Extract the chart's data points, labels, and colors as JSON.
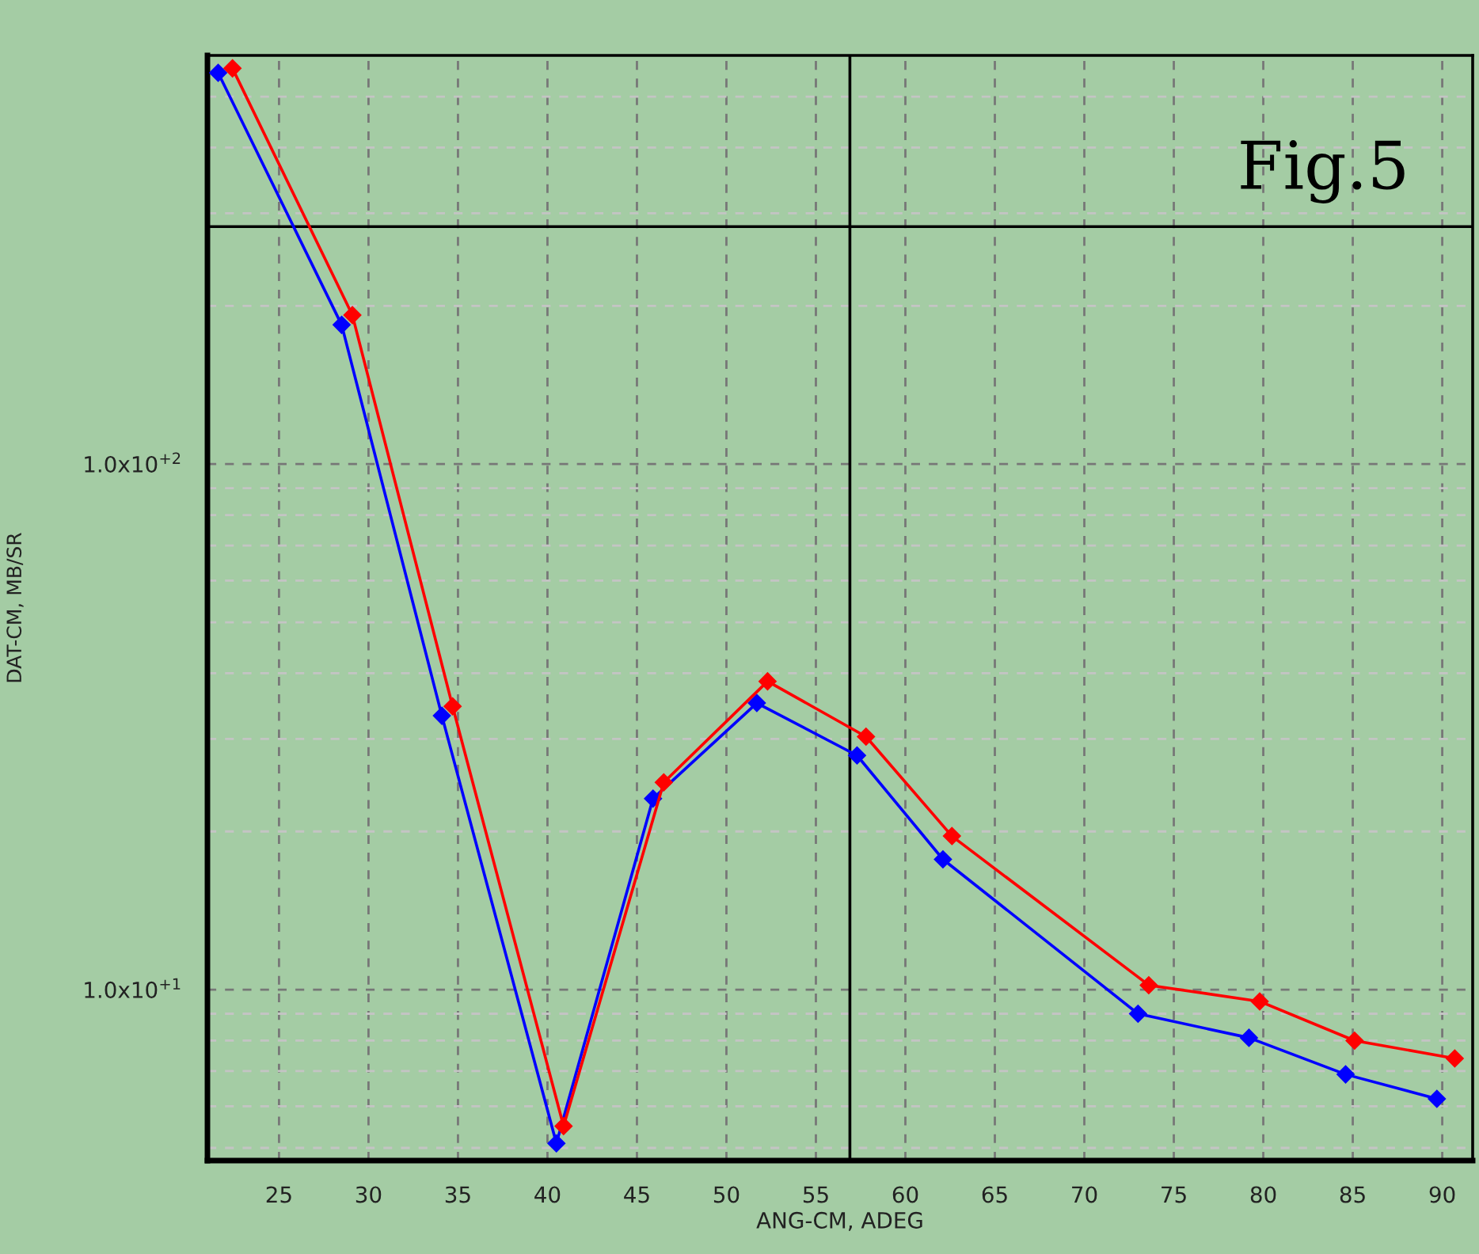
{
  "chart_data": {
    "type": "line",
    "xlabel": "ANG-CM, ADEG",
    "ylabel": "DAT-CM, MB/SR",
    "annotations": [
      "Fig.5"
    ],
    "series": [
      {
        "color": "#0000ff",
        "x": [
          21.6,
          28.5,
          34.1,
          40.5,
          45.9,
          51.7,
          57.3,
          62.1,
          73.0,
          79.2,
          84.6,
          89.7
        ],
        "values": [
          555,
          184,
          33.2,
          5.1,
          23.1,
          35.1,
          27.9,
          17.7,
          9.0,
          8.1,
          6.9,
          6.2
        ]
      },
      {
        "color": "#ff0000",
        "x": [
          22.4,
          29.1,
          34.7,
          40.9,
          46.5,
          52.3,
          57.8,
          62.6,
          73.6,
          79.8,
          85.1,
          90.7
        ],
        "values": [
          566,
          192,
          34.6,
          5.5,
          24.8,
          38.6,
          30.3,
          19.6,
          10.2,
          9.5,
          8.0,
          7.4
        ]
      }
    ],
    "log": "y",
    "xlim": [
      21,
      91.7
    ],
    "ylim": [
      4.73,
      599
    ],
    "xticks": [
      25,
      30,
      35,
      40,
      45,
      50,
      55,
      60,
      65,
      70,
      75,
      80,
      85,
      90
    ],
    "yticks": [
      {
        "value": 10,
        "label": "1.0x10$^{+1}$"
      },
      {
        "value": 100,
        "label": "1.0x10$^{+2}$"
      }
    ],
    "ref_lines": [
      {
        "axis": "x",
        "value": 56.9,
        "color": "#000000"
      },
      {
        "axis": "y",
        "value": 283,
        "color": "#000000"
      }
    ],
    "grid": true,
    "marker": "diamond",
    "line_style": "solid"
  }
}
